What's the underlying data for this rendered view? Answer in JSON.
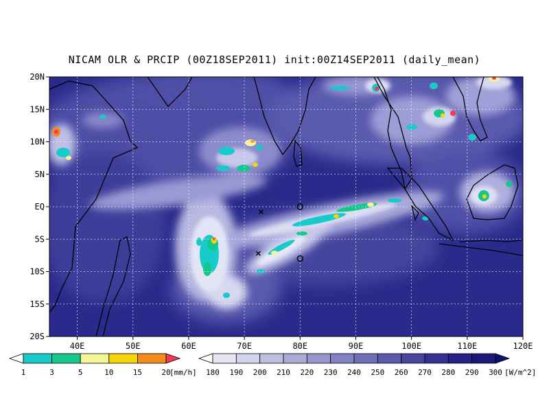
{
  "title": "NICAM OLR & PRCIP (00Z18SEP2011) init:00Z14SEP2011 (daily_mean)",
  "map": {
    "lon_range": [
      35,
      120
    ],
    "lat_range": [
      -20,
      20
    ],
    "lon_ticks": [
      {
        "value": 40,
        "label": "40E"
      },
      {
        "value": 50,
        "label": "50E"
      },
      {
        "value": 60,
        "label": "60E"
      },
      {
        "value": 70,
        "label": "70E"
      },
      {
        "value": 80,
        "label": "80E"
      },
      {
        "value": 90,
        "label": "90E"
      },
      {
        "value": 100,
        "label": "100E"
      },
      {
        "value": 110,
        "label": "110E"
      },
      {
        "value": 120,
        "label": "120E"
      }
    ],
    "lat_ticks": [
      {
        "value": 20,
        "label": "20N"
      },
      {
        "value": 15,
        "label": "15N"
      },
      {
        "value": 10,
        "label": "10N"
      },
      {
        "value": 5,
        "label": "5N"
      },
      {
        "value": 0,
        "label": "EQ"
      },
      {
        "value": -5,
        "label": "5S"
      },
      {
        "value": -10,
        "label": "10S"
      },
      {
        "value": -15,
        "label": "15S"
      },
      {
        "value": -20,
        "label": "20S"
      }
    ],
    "grid": true,
    "markers": [
      {
        "type": "cross",
        "lon": 73,
        "lat": -0.8
      },
      {
        "type": "cross",
        "lon": 72.5,
        "lat": -7.2
      },
      {
        "type": "circle",
        "lon": 80,
        "lat": 0
      },
      {
        "type": "circle",
        "lon": 80,
        "lat": -8
      }
    ]
  },
  "precip_colorbar": {
    "unit": "[mm/h]",
    "labels": [
      "1",
      "3",
      "5",
      "10",
      "15",
      "20"
    ],
    "colors": [
      "#ffffff",
      "#17cbcb",
      "#14c78a",
      "#f4f49a",
      "#f5d60a",
      "#f28a1e",
      "#ec3c5a"
    ]
  },
  "olr_colorbar": {
    "unit": "[W/m^2]",
    "labels": [
      "180",
      "190",
      "200",
      "210",
      "220",
      "230",
      "240",
      "250",
      "260",
      "270",
      "280",
      "290",
      "300"
    ],
    "colors": [
      "#ffffff",
      "#e6e6f2",
      "#d2d2ea",
      "#bebee0",
      "#aaaad6",
      "#9696cc",
      "#8282c2",
      "#6e6eb6",
      "#5a5aaa",
      "#46469e",
      "#323292",
      "#242486",
      "#1a1a7a",
      "#10106e"
    ]
  }
}
